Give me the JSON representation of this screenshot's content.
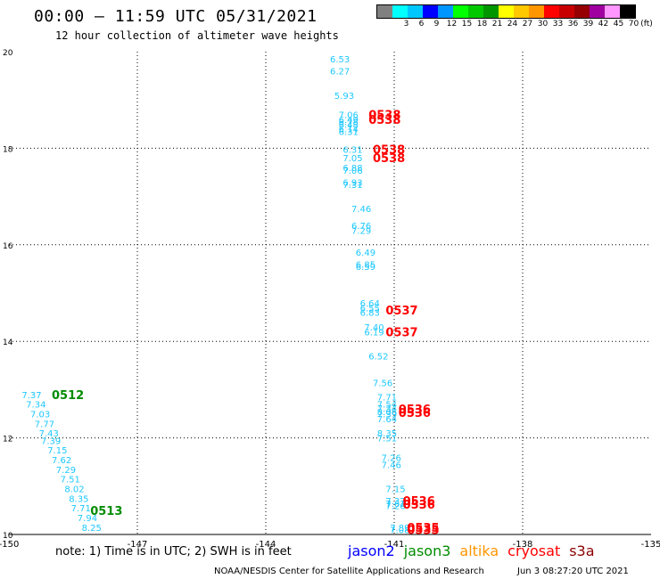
{
  "header": {
    "title": "00:00 – 11:59 UTC 05/31/2021",
    "subtitle": "12 hour collection of altimeter wave heights"
  },
  "colorbar": {
    "unit": "(ft)",
    "swatches": [
      {
        "color": "#808080",
        "label": ""
      },
      {
        "color": "#00ffff",
        "label": "3"
      },
      {
        "color": "#00c8ff",
        "label": "6"
      },
      {
        "color": "#0000ff",
        "label": "9"
      },
      {
        "color": "#0096ff",
        "label": "12"
      },
      {
        "color": "#00ff00",
        "label": "15"
      },
      {
        "color": "#00c800",
        "label": "18"
      },
      {
        "color": "#009600",
        "label": "21"
      },
      {
        "color": "#ffff00",
        "label": "24"
      },
      {
        "color": "#ffc800",
        "label": "27"
      },
      {
        "color": "#ff9600",
        "label": "30"
      },
      {
        "color": "#ff0000",
        "label": "33"
      },
      {
        "color": "#c80000",
        "label": "36"
      },
      {
        "color": "#960000",
        "label": "39"
      },
      {
        "color": "#a000a0",
        "label": "42"
      },
      {
        "color": "#ff96ff",
        "label": "45"
      },
      {
        "color": "#000000",
        "label": "70"
      }
    ]
  },
  "note": "note: 1) Time is in UTC; 2) SWH is in feet",
  "satellites": [
    {
      "name": "jason2",
      "color": "#0000ff"
    },
    {
      "name": "jason3",
      "color": "#008c00"
    },
    {
      "name": "altika",
      "color": "#ff9600"
    },
    {
      "name": "cryosat",
      "color": "#ff0000"
    },
    {
      "name": "s3a",
      "color": "#8b0000"
    }
  ],
  "footer": {
    "credit": "NOAA/NESDIS Center for Satellite Applications and Research",
    "date": "Jun  3 08:27:20 UTC 2021"
  },
  "chart_data": {
    "type": "scatter",
    "xlim": [
      -150,
      -135
    ],
    "ylim": [
      10,
      20
    ],
    "grid": true,
    "x_ticks": [
      "-150",
      "-147",
      "-144",
      "-141",
      "-138",
      "-135"
    ],
    "y_ticks": [
      "10",
      "12",
      "14",
      "16",
      "18",
      "20"
    ],
    "series": [
      {
        "color": "#1ec8ff",
        "points": [
          {
            "x": -142.5,
            "y": 19.85,
            "v": "6.53"
          },
          {
            "x": -142.5,
            "y": 19.6,
            "v": "6.27"
          },
          {
            "x": -142.4,
            "y": 19.1,
            "v": "5.93"
          },
          {
            "x": -142.3,
            "y": 18.7,
            "v": "7.06"
          },
          {
            "x": -142.3,
            "y": 18.6,
            "v": "6.49"
          },
          {
            "x": -142.3,
            "y": 18.55,
            "v": "6.78"
          },
          {
            "x": -142.3,
            "y": 18.5,
            "v": "6.48"
          },
          {
            "x": -142.3,
            "y": 18.4,
            "v": "6.14"
          },
          {
            "x": -142.3,
            "y": 18.35,
            "v": "6.31"
          },
          {
            "x": -142.2,
            "y": 17.98,
            "v": "6.31"
          },
          {
            "x": -142.2,
            "y": 17.8,
            "v": "7.05"
          },
          {
            "x": -142.2,
            "y": 17.6,
            "v": "6.88"
          },
          {
            "x": -142.2,
            "y": 17.55,
            "v": "7.06"
          },
          {
            "x": -142.2,
            "y": 17.3,
            "v": "6.93"
          },
          {
            "x": -142.2,
            "y": 17.25,
            "v": "7.31"
          },
          {
            "x": -142.0,
            "y": 16.75,
            "v": "7.46"
          },
          {
            "x": -142.0,
            "y": 16.4,
            "v": "6.76"
          },
          {
            "x": -142.0,
            "y": 16.3,
            "v": "7.29"
          },
          {
            "x": -141.9,
            "y": 15.85,
            "v": "6.49"
          },
          {
            "x": -141.9,
            "y": 15.6,
            "v": "6.85"
          },
          {
            "x": -141.9,
            "y": 15.55,
            "v": "6.59"
          },
          {
            "x": -141.8,
            "y": 14.8,
            "v": "6.64"
          },
          {
            "x": -141.8,
            "y": 14.7,
            "v": "6.55"
          },
          {
            "x": -141.8,
            "y": 14.6,
            "v": "6.83"
          },
          {
            "x": -141.7,
            "y": 14.3,
            "v": "7.40"
          },
          {
            "x": -141.7,
            "y": 14.2,
            "v": "6.19"
          },
          {
            "x": -141.6,
            "y": 13.7,
            "v": "6.52"
          },
          {
            "x": -141.5,
            "y": 13.15,
            "v": "7.56"
          },
          {
            "x": -141.4,
            "y": 12.85,
            "v": "7.71"
          },
          {
            "x": -141.4,
            "y": 12.7,
            "v": "7.54"
          },
          {
            "x": -141.4,
            "y": 12.62,
            "v": "7.34"
          },
          {
            "x": -141.4,
            "y": 12.55,
            "v": "8.06"
          },
          {
            "x": -141.4,
            "y": 12.5,
            "v": "7.39"
          },
          {
            "x": -141.4,
            "y": 12.4,
            "v": "7.64"
          },
          {
            "x": -141.4,
            "y": 12.1,
            "v": "8.35"
          },
          {
            "x": -141.4,
            "y": 12.0,
            "v": "7.51"
          },
          {
            "x": -141.3,
            "y": 11.6,
            "v": "7.26"
          },
          {
            "x": -141.3,
            "y": 11.45,
            "v": "7.46"
          },
          {
            "x": -141.2,
            "y": 10.95,
            "v": "7.15"
          },
          {
            "x": -141.2,
            "y": 10.7,
            "v": "7.37"
          },
          {
            "x": -141.2,
            "y": 10.65,
            "v": "7.62"
          },
          {
            "x": -141.2,
            "y": 10.6,
            "v": "7.26"
          },
          {
            "x": -141.1,
            "y": 10.15,
            "v": "7.89"
          },
          {
            "x": -141.1,
            "y": 10.1,
            "v": "7.08"
          }
        ]
      },
      {
        "color": "#1ec8ff",
        "points": [
          {
            "x": -149.7,
            "y": 12.9,
            "v": "7.37"
          },
          {
            "x": -149.6,
            "y": 12.7,
            "v": "7.34"
          },
          {
            "x": -149.5,
            "y": 12.5,
            "v": "7.03"
          },
          {
            "x": -149.4,
            "y": 12.3,
            "v": "7.77"
          },
          {
            "x": -149.3,
            "y": 12.1,
            "v": "7.43"
          },
          {
            "x": -149.25,
            "y": 11.95,
            "v": "7.39"
          },
          {
            "x": -149.1,
            "y": 11.75,
            "v": "7.15"
          },
          {
            "x": -149.0,
            "y": 11.55,
            "v": "7.62"
          },
          {
            "x": -148.9,
            "y": 11.35,
            "v": "7.29"
          },
          {
            "x": -148.8,
            "y": 11.15,
            "v": "7.51"
          },
          {
            "x": -148.7,
            "y": 10.95,
            "v": "8.02"
          },
          {
            "x": -148.6,
            "y": 10.75,
            "v": "8.35"
          },
          {
            "x": -148.55,
            "y": 10.55,
            "v": "7.71"
          },
          {
            "x": -148.4,
            "y": 10.35,
            "v": "7.94"
          },
          {
            "x": -148.3,
            "y": 10.15,
            "v": "8.25"
          }
        ]
      }
    ],
    "annotations": [
      {
        "text": "0538",
        "x": -141.6,
        "y": 18.7,
        "color": "#ff0000"
      },
      {
        "text": "0538",
        "x": -141.6,
        "y": 18.6,
        "color": "#ff0000"
      },
      {
        "text": "0538",
        "x": -141.5,
        "y": 17.98,
        "color": "#ff0000"
      },
      {
        "text": "0538",
        "x": -141.5,
        "y": 17.8,
        "color": "#ff0000"
      },
      {
        "text": "0537",
        "x": -141.2,
        "y": 14.65,
        "color": "#ff0000"
      },
      {
        "text": "0537",
        "x": -141.2,
        "y": 14.2,
        "color": "#ff0000"
      },
      {
        "text": "0536",
        "x": -140.9,
        "y": 12.6,
        "color": "#ff0000"
      },
      {
        "text": "0536",
        "x": -140.9,
        "y": 12.53,
        "color": "#ff0000"
      },
      {
        "text": "0536",
        "x": -140.8,
        "y": 10.7,
        "color": "#ff0000"
      },
      {
        "text": "0536",
        "x": -140.8,
        "y": 10.63,
        "color": "#ff0000"
      },
      {
        "text": "0535",
        "x": -140.7,
        "y": 10.15,
        "color": "#ff0000"
      },
      {
        "text": "0535",
        "x": -140.7,
        "y": 10.1,
        "color": "#ff0000"
      },
      {
        "text": "0512",
        "x": -149.0,
        "y": 12.9,
        "color": "#008c00"
      },
      {
        "text": "0513",
        "x": -148.1,
        "y": 10.5,
        "color": "#008c00"
      }
    ]
  }
}
